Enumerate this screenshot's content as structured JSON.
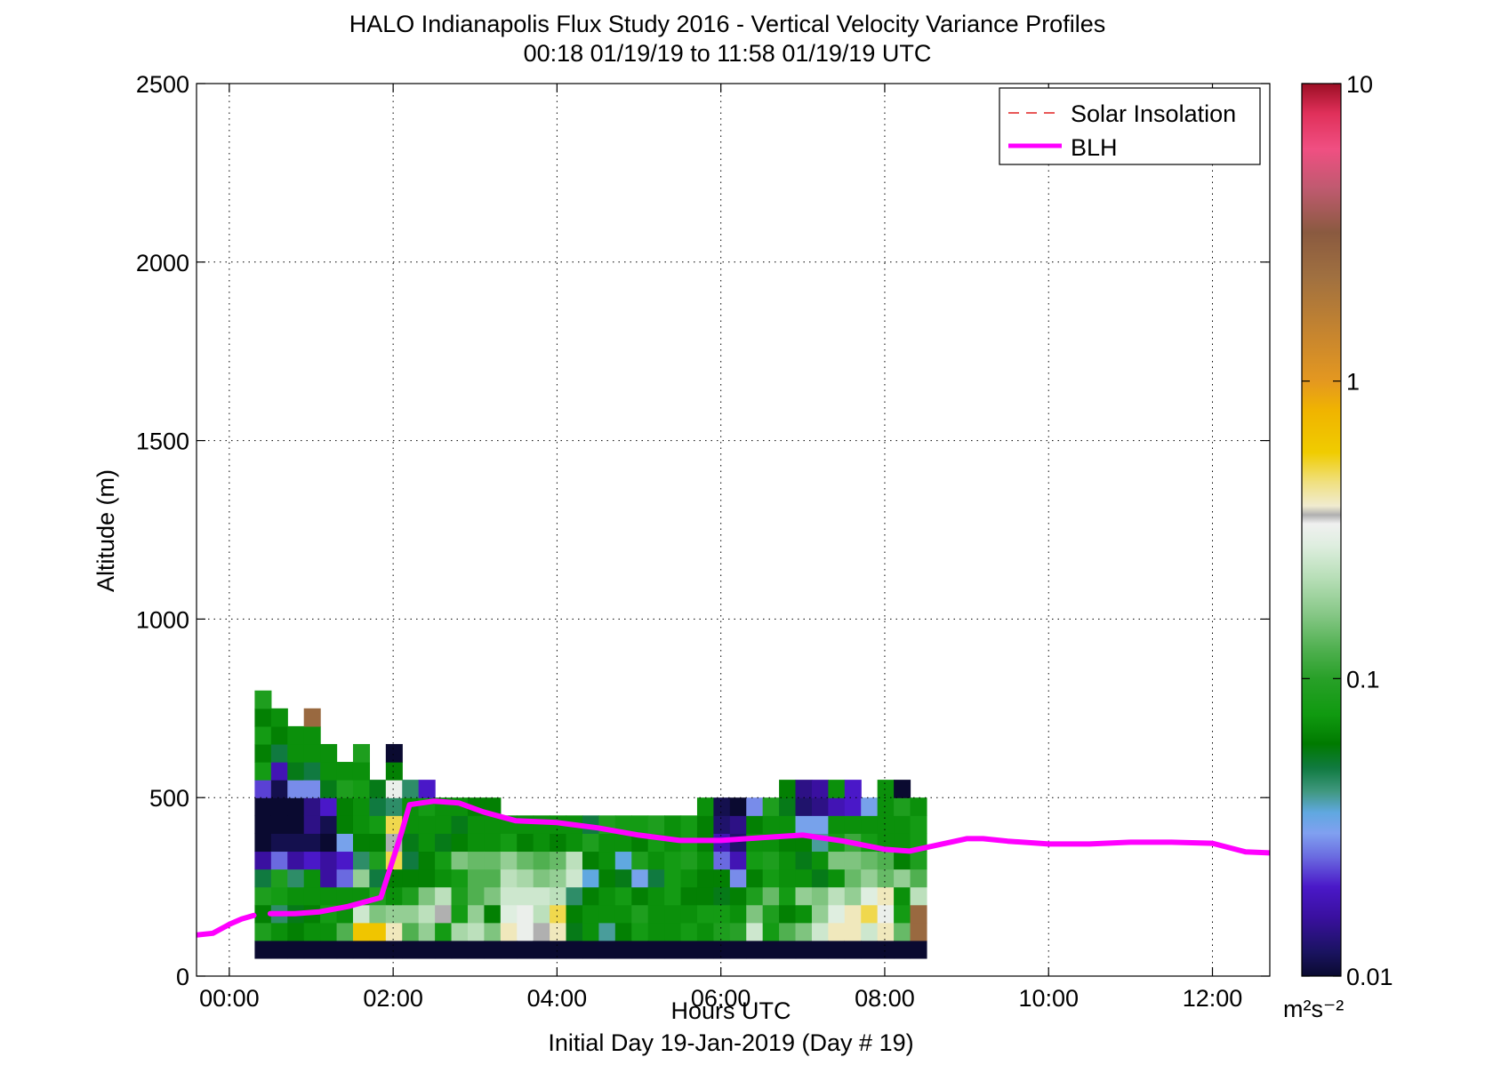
{
  "chart_data": {
    "type": "heatmap",
    "title": "HALO Indianapolis Flux Study 2016 - Vertical Velocity Variance Profiles",
    "subtitle": "00:18 01/19/19 to 11:58 01/19/19  UTC",
    "xlabel": "Hours UTC",
    "xlabel2": "Initial Day 19-Jan-2019 (Day # 19)",
    "ylabel": "Altitude (m)",
    "xlim": [
      -0.4,
      12.7
    ],
    "ylim": [
      0,
      2500
    ],
    "grid": true,
    "x_ticks": [
      0,
      2,
      4,
      6,
      8,
      10,
      12
    ],
    "x_tick_labels": [
      "00:00",
      "02:00",
      "04:00",
      "06:00",
      "08:00",
      "10:00",
      "12:00"
    ],
    "y_ticks": [
      0,
      500,
      1000,
      1500,
      2000,
      2500
    ],
    "y_tick_labels": [
      "0",
      "500",
      "1000",
      "1500",
      "2000",
      "2500"
    ],
    "legend": {
      "placement": "top-right",
      "entries": [
        {
          "label": "Solar Insolation",
          "color": "#e02020",
          "style": "dashed"
        },
        {
          "label": "BLH",
          "color": "#ff00ff",
          "style": "solid"
        }
      ]
    },
    "colorbar": {
      "scale": "log",
      "range": [
        0.01,
        10
      ],
      "tick_values": [
        0.01,
        0.1,
        1,
        10
      ],
      "tick_labels": [
        "0.01",
        "0.1",
        "1",
        "10"
      ],
      "units": "m²s⁻²"
    },
    "heatmap": {
      "x_start": 0.31,
      "x_step": 0.2,
      "y_start": 50,
      "y_step": 50,
      "value_scale": "log10 of variance (m²s⁻²)",
      "columns": [
        [
          -2,
          -1.05,
          -1.2,
          -1.05,
          -1.3,
          -1.8,
          -2,
          -2,
          -2,
          -1.65,
          -1.1,
          -1.2,
          -1.1,
          -1.2,
          -1.05
        ],
        [
          -2,
          -1.15,
          -1.35,
          -1.1,
          -1.05,
          -1.6,
          -1.95,
          -2,
          -2,
          -1.95,
          -1.75,
          -1.3,
          -1.2,
          -1.15
        ],
        [
          -2,
          -1.2,
          -1.25,
          -1.15,
          -1.35,
          -1.8,
          -1.95,
          -2,
          -2,
          -1.55,
          -1.25,
          -1.15,
          -1.15
        ],
        [
          -2,
          -1.15,
          -1.2,
          -1.15,
          -1.15,
          -1.7,
          -1.95,
          -1.85,
          -1.85,
          -1.55,
          -1.3,
          -1.15,
          -1.15,
          0.4
        ],
        [
          -2,
          -1.15,
          -1.1,
          -1.15,
          -1.8,
          -1.8,
          -2,
          -1.95,
          -1.7,
          -1.25,
          -1.15,
          -1.15
        ],
        [
          -2,
          -0.9,
          -1.15,
          -1.15,
          -1.6,
          -1.7,
          -1.5,
          -1.2,
          -1.2,
          -1.05,
          -1.15
        ],
        [
          -2,
          -0.2,
          -0.6,
          -1.15,
          -0.75,
          -1.35,
          -1.2,
          -1.15,
          -1.15,
          -1.1,
          -1.15,
          -1.05
        ],
        [
          -2,
          -0.2,
          -0.8,
          -1.05,
          -1.3,
          -1.05,
          -1.2,
          -1.1,
          -1.3,
          -1.25
        ],
        [
          -2,
          -0.4,
          -0.75,
          -1.15,
          -1.2,
          -0.3,
          -0.45,
          -0.3,
          -1.35,
          -0.5,
          -1.2,
          -2
        ],
        [
          -2,
          -0.9,
          -0.75,
          -1.05,
          -1.2,
          -1.3,
          -1.25,
          -1.15,
          -1.15,
          -1.35
        ],
        [
          -2,
          -0.75,
          -0.65,
          -0.8,
          -1.2,
          -1.2,
          -1.15,
          -1.15,
          -1.1,
          -1.7
        ],
        [
          -2,
          -1.1,
          -0.45,
          -0.65,
          -1.15,
          -1.1,
          -1.25,
          -1.15,
          -1.15
        ],
        [
          -2,
          -0.7,
          -1.1,
          -1.05,
          -1.1,
          -0.8,
          -1.2,
          -1.25,
          -1.15
        ],
        [
          -2,
          -0.65,
          -0.75,
          -0.9,
          -0.9,
          -0.85,
          -1.15,
          -1.15,
          -1.2
        ],
        [
          -2,
          -0.8,
          -1.2,
          -0.8,
          -0.9,
          -0.85,
          -1.15,
          -1.15,
          -1.2
        ],
        [
          -2,
          -0.4,
          -0.55,
          -0.6,
          -0.65,
          -0.75,
          -1.1,
          -1.15
        ],
        [
          -2,
          -0.5,
          -0.5,
          -0.6,
          -0.7,
          -0.85,
          -1.2,
          -1.15
        ],
        [
          -2,
          -0.45,
          -0.65,
          -0.6,
          -0.8,
          -0.9,
          -1.15,
          -1.15
        ],
        [
          -2,
          -0.4,
          -0.3,
          -0.65,
          -0.75,
          -0.85,
          -1.2,
          -1.15
        ],
        [
          -2,
          -1.25,
          -1.2,
          -1.35,
          -0.6,
          -0.65,
          -1.15,
          -1.15
        ],
        [
          -2,
          -1.15,
          -1.15,
          -1.2,
          -1.45,
          -1.2,
          -1.05,
          -1.3
        ],
        [
          -2,
          -1.4,
          -1.15,
          -1.15,
          -1.2,
          -1.15,
          -1.15,
          -1.05
        ],
        [
          -2,
          -1.2,
          -1.15,
          -1.1,
          -1.25,
          -1.45,
          -1.15,
          -1.1
        ],
        [
          -2,
          -1.1,
          -1.05,
          -1.2,
          -1.5,
          -1.05,
          -1.2,
          -1.1
        ],
        [
          -2,
          -1.15,
          -1.15,
          -1.15,
          -1.3,
          -1.15,
          -1.1,
          -1.05
        ],
        [
          -2,
          -1.15,
          -1.15,
          -1.1,
          -1.1,
          -1.1,
          -1.15,
          -1.15
        ],
        [
          -2,
          -1.1,
          -1.15,
          -1.2,
          -1.15,
          -1.05,
          -1.1,
          -1.1
        ],
        [
          -2,
          -1.15,
          -1.1,
          -1.2,
          -1.2,
          -1.15,
          -1.2,
          -1.2,
          -1.15
        ],
        [
          -2,
          -1.05,
          -1.1,
          -1.25,
          -1.2,
          -1.6,
          -1.75,
          -1.9,
          -1.95
        ],
        [
          -2,
          -1,
          -1.15,
          -1.2,
          -1.55,
          -1.75,
          -1.9,
          -1.85,
          -2
        ],
        [
          -2,
          -0.6,
          -0.8,
          -1.05,
          -1.2,
          -1.1,
          -1.15,
          -1.2,
          -1.55
        ],
        [
          -2,
          -1.1,
          -1.05,
          -0.85,
          -1.1,
          -1.05,
          -1.15,
          -1.15,
          -1.05
        ],
        [
          -2,
          -0.9,
          -1.2,
          -1.1,
          -1.15,
          -1.15,
          -1.2,
          -1.15,
          -1.25,
          -1.2
        ],
        [
          -2,
          -0.8,
          -1.15,
          -0.75,
          -1.15,
          -1.25,
          -1.2,
          -1.5,
          -1.9,
          -1.85
        ],
        [
          -2,
          -0.6,
          -0.75,
          -0.8,
          -1.25,
          -1.15,
          -1.4,
          -1.5,
          -1.85,
          -1.8
        ],
        [
          -2,
          -0.4,
          -0.55,
          -0.65,
          -1.15,
          -0.8,
          -1.1,
          -1.15,
          -1.75,
          -1.15
        ],
        [
          -2,
          -0.4,
          -0.4,
          -0.75,
          -0.85,
          -0.8,
          -0.95,
          -1.15,
          -1.7,
          -1.7
        ],
        [
          -2,
          -0.6,
          -0.3,
          -0.55,
          -0.75,
          -0.85,
          -1.1,
          -1.15,
          -1.5
        ],
        [
          -2,
          -0.4,
          -0.5,
          -0.4,
          -0.85,
          -0.9,
          -1.15,
          -1.15,
          -1.15,
          -1.15
        ],
        [
          -2,
          -0.85,
          -1.1,
          -1.15,
          -0.75,
          -1.2,
          -1.15,
          -1.15,
          -1.05,
          -2
        ],
        [
          -2,
          0.4,
          0.4,
          -0.65,
          -0.9,
          -1.05,
          -1.1,
          -1.1,
          -1.15
        ]
      ]
    },
    "series": [
      {
        "name": "BLH",
        "x": [
          -0.4,
          -0.2,
          0,
          0.15,
          0.3
        ],
        "y": [
          115,
          120,
          145,
          160,
          170
        ]
      },
      {
        "name": "BLH",
        "x": [
          0.5,
          0.8,
          1.1,
          1.45,
          1.85,
          2.1,
          2.2,
          2.5,
          2.8,
          3.1,
          3.5,
          4,
          4.5,
          5,
          5.5,
          6,
          6.5,
          7,
          7.5,
          8,
          8.3,
          8.6,
          9,
          9.2,
          9.5,
          10,
          10.5,
          11,
          11.5,
          12,
          12.4,
          12.7
        ],
        "y": [
          175,
          175,
          180,
          195,
          220,
          400,
          480,
          490,
          485,
          460,
          435,
          430,
          415,
          395,
          380,
          380,
          388,
          395,
          378,
          355,
          350,
          365,
          385,
          385,
          378,
          370,
          370,
          375,
          375,
          372,
          348,
          345
        ]
      }
    ]
  }
}
